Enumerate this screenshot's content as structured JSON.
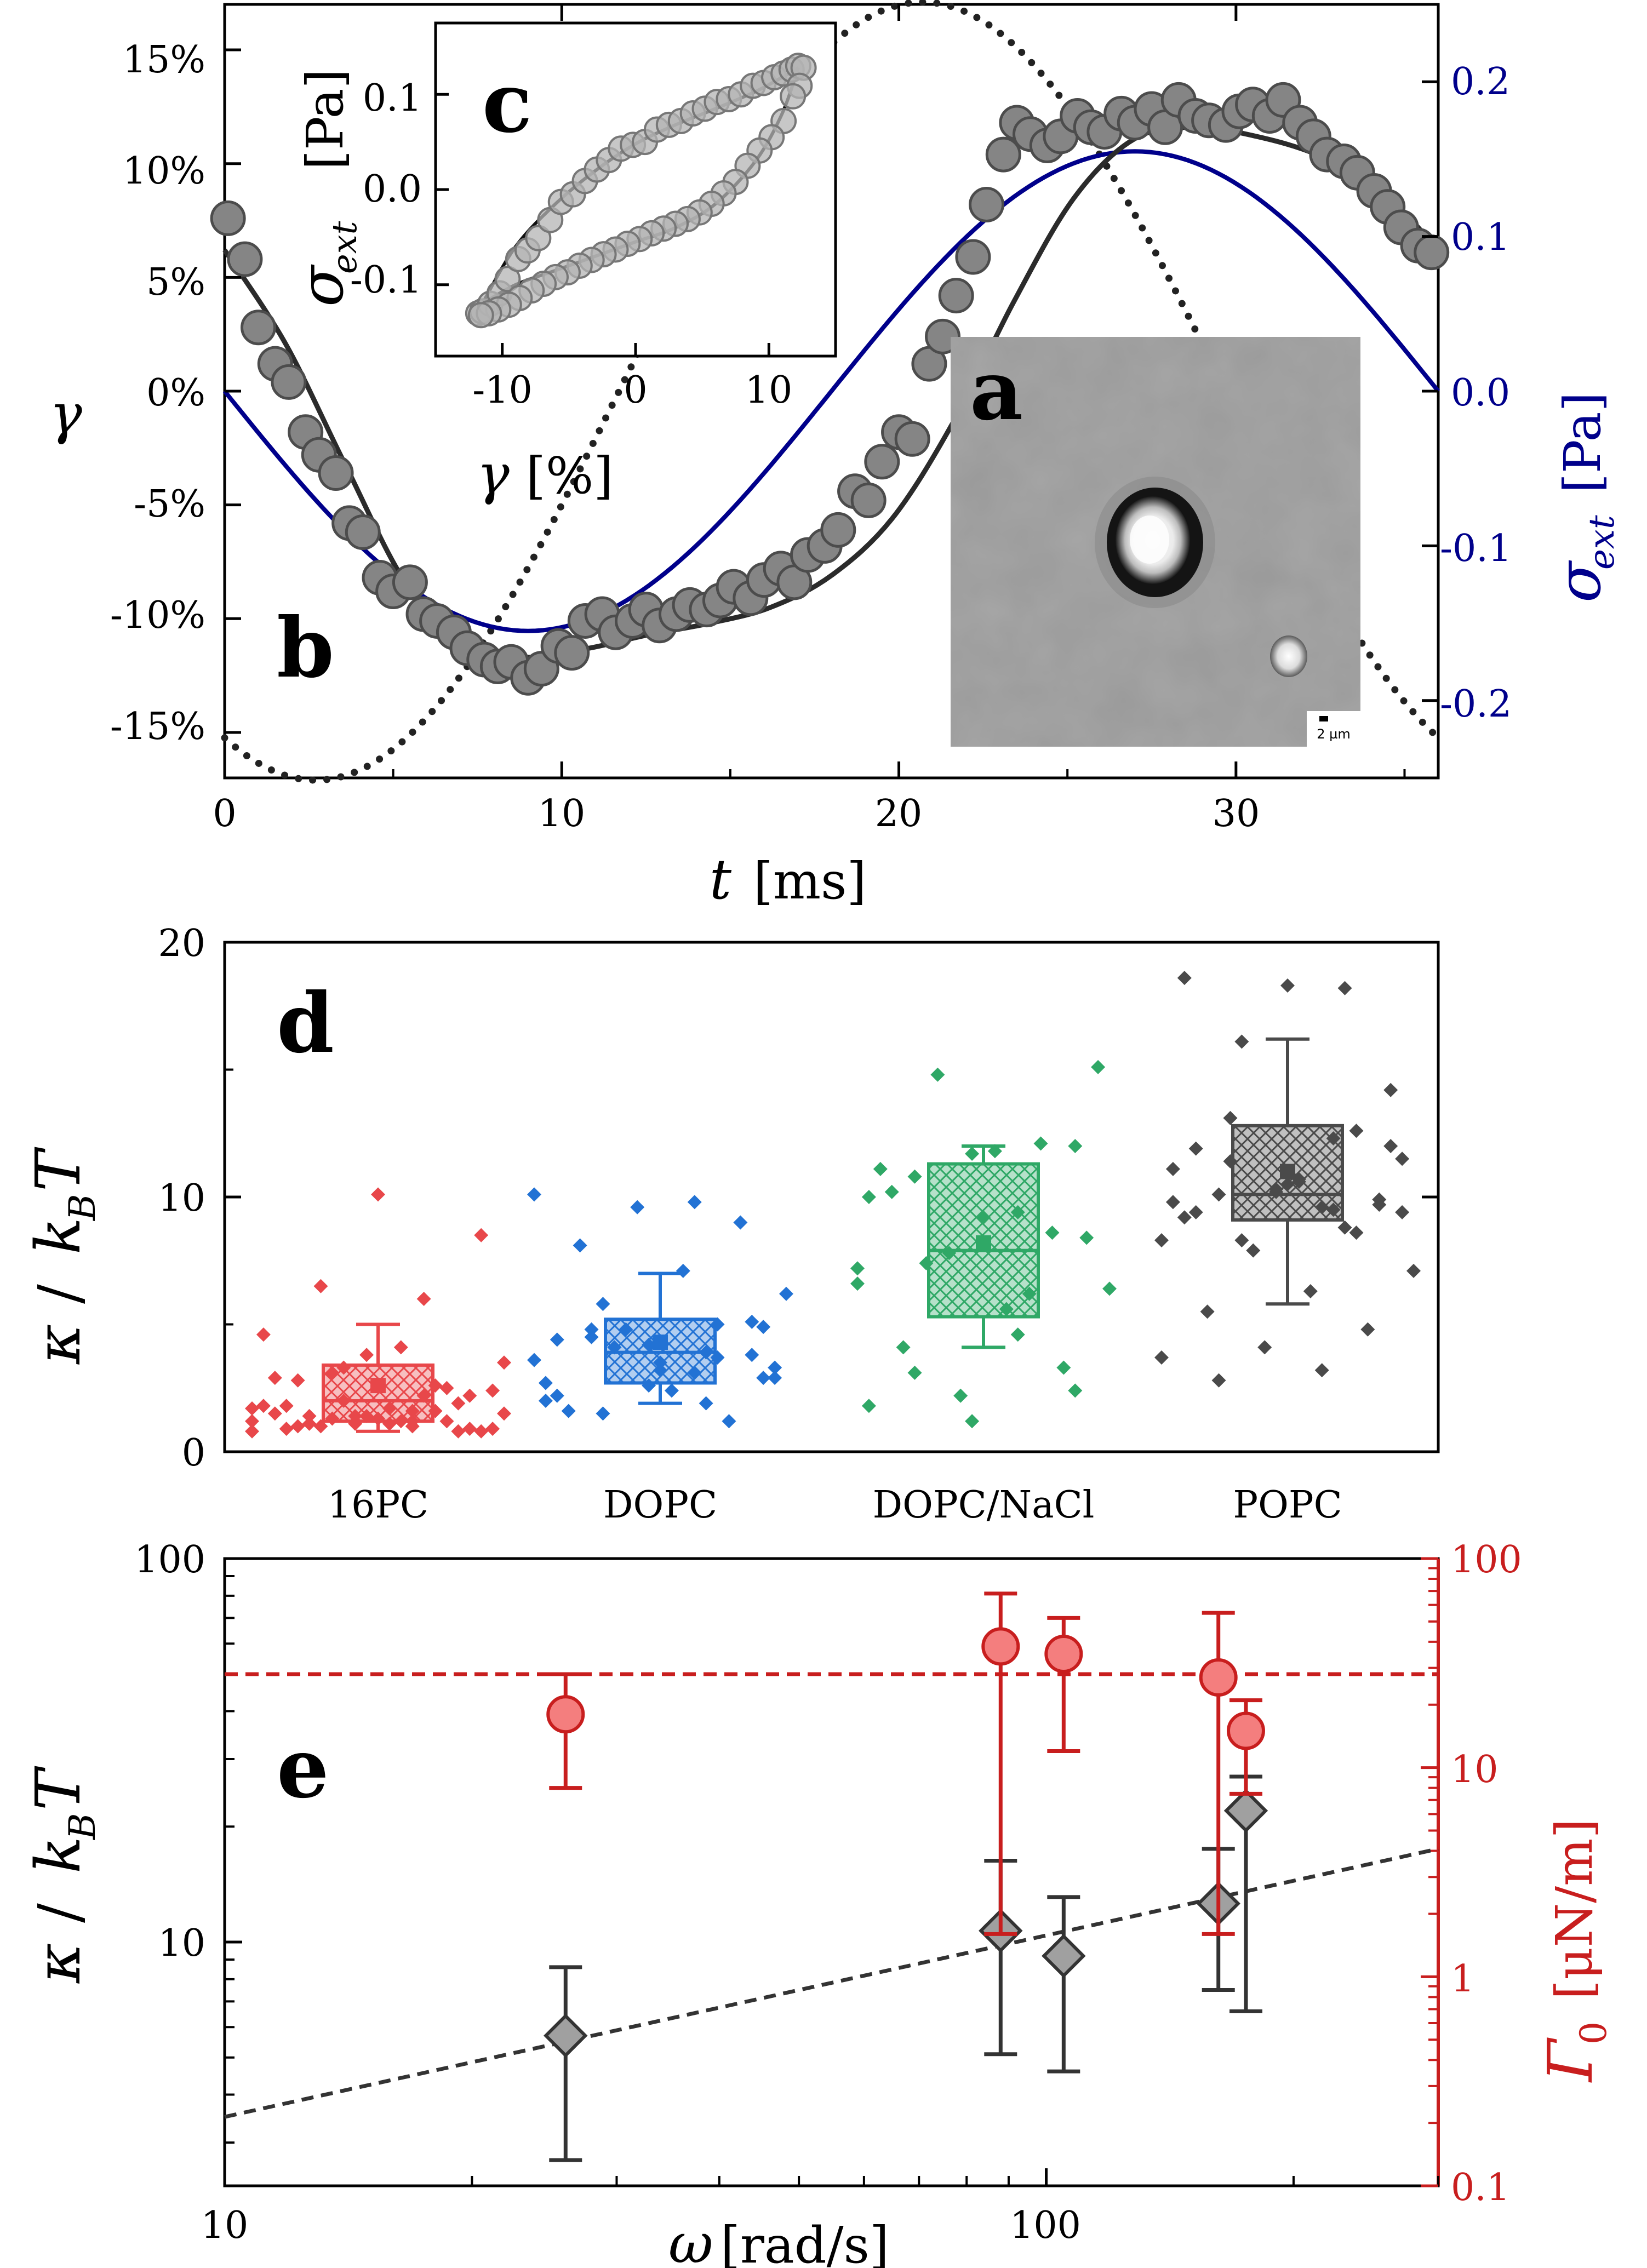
{
  "panels": {
    "a": {
      "letter": "a",
      "scalebar_label": "2 µm"
    },
    "b": {
      "letter": "b",
      "xlabel_symbol": "t",
      "xlabel_unit": "[ms]",
      "ylabel_left": "γ",
      "ylabel_right_symbol": "σ",
      "ylabel_right_sub": "ext",
      "ylabel_right_unit": "[Pa]",
      "xticks": [
        "0",
        "10",
        "20",
        "30"
      ],
      "yticks_left": [
        "15%",
        "10%",
        "5%",
        "0%",
        "-5%",
        "-10%",
        "-15%"
      ],
      "yticks_right": [
        "0.2",
        "0.1",
        "0.0",
        "-0.1",
        "-0.2"
      ]
    },
    "c": {
      "letter": "c",
      "xlabel_symbol": "γ",
      "xlabel_unit": "[%]",
      "ylabel_symbol": "σ",
      "ylabel_sub": "ext",
      "ylabel_unit": "[Pa]",
      "xticks": [
        "-10",
        "0",
        "10"
      ],
      "yticks": [
        "0.1",
        "0.0",
        "-0.1"
      ]
    },
    "d": {
      "letter": "d",
      "ylabel_kappa": "κ",
      "ylabel_sep": "/",
      "ylabel_k": "k",
      "ylabel_sub": "B",
      "ylabel_T": "T",
      "yticks": [
        "0",
        "10",
        "20"
      ]
    },
    "e": {
      "letter": "e",
      "xlabel_symbol": "ω",
      "xlabel_unit": "[rad/s]",
      "ylabel_kappa": "κ",
      "ylabel_sep": "/",
      "ylabel_k": "k",
      "ylabel_sub": "B",
      "ylabel_T": "T",
      "ylabel_right_symbol": "Γ",
      "ylabel_right_sub": "0",
      "ylabel_right_unit": "[μN/m]",
      "xticks": [
        "10",
        "100"
      ],
      "yticks_left": [
        "10",
        "100"
      ],
      "yticks_right": [
        "0.1",
        "1",
        "10",
        "100"
      ]
    }
  },
  "colors": {
    "strain": "#7a7a7a",
    "stress": "#00008b",
    "fit": "#2b2b2b",
    "red": "#e8474a",
    "blue": "#2272d4",
    "green": "#2fa866",
    "gray": "#4a4a4a",
    "e_red": "#c81e1e",
    "e_red_fill": "#f47e7e",
    "e_gray_fill": "#a0a0a0"
  },
  "chart_data": [
    {
      "id": "b",
      "type": "scatter",
      "xlim": [
        0,
        36
      ],
      "ylim_left": [
        -0.17,
        0.17
      ],
      "ylim_right": [
        -0.25,
        0.25
      ],
      "strain_amplitude": 0.115,
      "stress_amplitude": 0.155,
      "period_ms": 36,
      "series": [
        {
          "kind": "measured strain",
          "x": [
            0.1,
            0.6,
            1.0,
            1.5,
            1.9,
            2.4,
            2.8,
            3.3,
            3.7,
            4.1,
            4.6,
            5.0,
            5.5,
            5.9,
            6.3,
            6.8,
            7.2,
            7.7,
            8.1,
            8.5,
            9.0,
            9.4,
            9.9,
            10.3,
            10.7,
            11.2,
            11.6,
            12.1,
            12.5,
            12.9,
            13.4,
            13.8,
            14.3,
            14.7,
            15.1,
            15.6,
            16.0,
            16.5,
            16.9,
            17.3,
            17.8,
            18.2,
            18.7,
            19.1,
            19.5,
            20.0,
            20.4,
            20.9,
            21.3,
            21.7,
            22.2,
            22.6,
            23.1,
            23.5,
            23.9,
            24.4,
            24.8,
            25.3,
            25.7,
            26.1,
            26.6,
            27.0,
            27.5,
            27.9,
            28.3,
            28.8,
            29.2,
            29.7,
            30.1,
            30.5,
            31.0,
            31.4,
            31.9,
            32.3,
            32.7,
            33.2,
            33.6,
            34.1,
            34.5,
            34.9,
            35.4,
            35.8
          ],
          "y": [
            0.076,
            0.058,
            0.028,
            0.012,
            0.004,
            -0.018,
            -0.028,
            -0.036,
            -0.058,
            -0.062,
            -0.082,
            -0.088,
            -0.084,
            -0.098,
            -0.101,
            -0.106,
            -0.113,
            -0.118,
            -0.121,
            -0.119,
            -0.126,
            -0.122,
            -0.112,
            -0.115,
            -0.101,
            -0.098,
            -0.106,
            -0.101,
            -0.096,
            -0.103,
            -0.098,
            -0.094,
            -0.096,
            -0.092,
            -0.086,
            -0.091,
            -0.083,
            -0.078,
            -0.084,
            -0.072,
            -0.068,
            -0.061,
            -0.044,
            -0.048,
            -0.031,
            -0.018,
            -0.021,
            0.012,
            0.024,
            0.042,
            0.059,
            0.082,
            0.104,
            0.118,
            0.113,
            0.108,
            0.112,
            0.121,
            0.116,
            0.114,
            0.122,
            0.118,
            0.124,
            0.116,
            0.128,
            0.121,
            0.119,
            0.117,
            0.123,
            0.126,
            0.121,
            0.128,
            0.118,
            0.112,
            0.104,
            0.101,
            0.096,
            0.088,
            0.081,
            0.072,
            0.064,
            0.061
          ]
        },
        {
          "kind": "strain fit",
          "x": [
            0,
            1.8,
            3.6,
            5.4,
            7.2,
            9,
            10.8,
            12.6,
            14.4,
            16.2,
            18,
            19.8,
            21.6,
            23.4,
            25.2,
            27,
            28.8,
            30.6,
            32.4,
            34.2,
            36
          ],
          "y": [
            0.062,
            0.021,
            -0.033,
            -0.085,
            -0.112,
            -0.117,
            -0.113,
            -0.107,
            -0.102,
            -0.095,
            -0.081,
            -0.056,
            -0.014,
            0.039,
            0.085,
            0.111,
            0.116,
            0.112,
            0.104,
            0.09,
            0.062
          ]
        },
        {
          "kind": "linear strain",
          "x": [
            0,
            1.8,
            3.6,
            5.4,
            7.2,
            9,
            10.8,
            12.6,
            14.4,
            16.2,
            18,
            19.8,
            21.6,
            23.4,
            25.2,
            27,
            28.8,
            30.6,
            32.4,
            34.2,
            36
          ],
          "y": [
            0.075,
            0.022,
            -0.034,
            -0.087,
            -0.13,
            -0.159,
            -0.171,
            -0.164,
            -0.14,
            -0.101,
            -0.052,
            0.003,
            0.058,
            0.107,
            0.145,
            0.167,
            0.171,
            0.156,
            0.123,
            0.077,
            0.022
          ]
        },
        {
          "kind": "external stress",
          "x": [
            0,
            1.8,
            3.6,
            5.4,
            7.2,
            9,
            10.8,
            12.6,
            14.4,
            16.2,
            18,
            19.8,
            21.6,
            23.4,
            25.2,
            27,
            28.8,
            30.6,
            32.4,
            34.2,
            36
          ],
          "y": [
            0.0,
            -0.048,
            -0.091,
            -0.125,
            -0.147,
            -0.155,
            -0.147,
            -0.125,
            -0.091,
            -0.048,
            0.0,
            0.048,
            0.091,
            0.125,
            0.147,
            0.155,
            0.147,
            0.125,
            0.091,
            0.048,
            0.0
          ]
        }
      ]
    },
    {
      "id": "c",
      "type": "scatter",
      "xlim": [
        -15,
        15
      ],
      "ylim": [
        -0.175,
        0.175
      ],
      "series": [
        {
          "kind": "measured loop",
          "x": [
            -11.8,
            -11.5,
            -10.9,
            -10.2,
            -9.6,
            -8.8,
            -8.1,
            -7.3,
            -6.4,
            -5.6,
            -4.7,
            -3.8,
            -2.9,
            -2.0,
            -1.1,
            -0.2,
            0.7,
            1.6,
            2.5,
            3.4,
            4.3,
            5.2,
            6.1,
            7.0,
            7.9,
            8.8,
            9.6,
            10.4,
            11.1,
            11.7,
            12.2,
            12.6,
            12.3,
            11.8,
            11.1,
            10.2,
            9.3,
            8.4,
            7.5,
            6.6,
            5.7,
            4.8,
            3.9,
            3.0,
            2.1,
            1.2,
            0.3,
            -0.6,
            -1.5,
            -2.4,
            -3.3,
            -4.2,
            -5.1,
            -6.0,
            -6.9,
            -7.8,
            -8.7,
            -9.5,
            -10.3,
            -11.0,
            -11.6
          ],
          "y": [
            -0.13,
            -0.128,
            -0.12,
            -0.109,
            -0.094,
            -0.073,
            -0.064,
            -0.051,
            -0.032,
            -0.013,
            -0.005,
            0.009,
            0.021,
            0.031,
            0.043,
            0.047,
            0.05,
            0.063,
            0.068,
            0.072,
            0.08,
            0.085,
            0.092,
            0.095,
            0.1,
            0.109,
            0.112,
            0.118,
            0.122,
            0.126,
            0.13,
            0.128,
            0.109,
            0.098,
            0.072,
            0.055,
            0.041,
            0.025,
            0.008,
            -0.004,
            -0.015,
            -0.024,
            -0.031,
            -0.036,
            -0.041,
            -0.046,
            -0.052,
            -0.057,
            -0.063,
            -0.068,
            -0.074,
            -0.08,
            -0.087,
            -0.092,
            -0.099,
            -0.106,
            -0.114,
            -0.121,
            -0.126,
            -0.13,
            -0.132
          ]
        },
        {
          "kind": "fit upper branch",
          "x": [
            -11.5,
            -9,
            -6,
            -3,
            0,
            3,
            6,
            9,
            11.5,
            12.2
          ],
          "y": [
            -0.12,
            -0.06,
            -0.015,
            0.02,
            0.048,
            0.068,
            0.085,
            0.103,
            0.122,
            0.128
          ]
        },
        {
          "kind": "fit lower branch",
          "x": [
            12.2,
            11,
            9,
            6,
            3,
            0,
            -3,
            -6,
            -9,
            -11.5
          ],
          "y": [
            0.128,
            0.08,
            0.03,
            -0.015,
            -0.04,
            -0.055,
            -0.07,
            -0.085,
            -0.1,
            -0.12
          ]
        }
      ]
    },
    {
      "id": "d",
      "type": "box",
      "categories": [
        "16PC",
        "DOPC",
        "DOPC/NaCl",
        "POPC"
      ],
      "ylim": [
        0,
        20
      ],
      "boxes": [
        {
          "q1": 1.2,
          "median": 2.0,
          "q3": 3.4,
          "mean": 2.6,
          "whisker_low": 0.8,
          "whisker_high": 5.0
        },
        {
          "q1": 2.7,
          "median": 3.9,
          "q3": 5.2,
          "mean": 4.3,
          "whisker_low": 1.9,
          "whisker_high": 7.0
        },
        {
          "q1": 5.3,
          "median": 7.9,
          "q3": 11.3,
          "mean": 8.2,
          "whisker_low": 4.1,
          "whisker_high": 12.0
        },
        {
          "q1": 9.1,
          "median": 10.1,
          "q3": 12.8,
          "mean": 11.0,
          "whisker_low": 5.8,
          "whisker_high": 16.2
        }
      ],
      "points": [
        [
          1.2,
          1.6,
          1.1,
          0.9,
          1.4,
          1.8,
          2.2,
          1.0,
          0.8,
          1.3,
          1.5,
          2.6,
          3.1,
          2.4,
          1.7,
          0.9,
          1.2,
          2.0,
          3.5,
          4.1,
          2.8,
          1.9,
          1.1,
          0.8,
          1.0,
          1.4,
          2.2,
          3.8,
          4.6,
          6.0,
          6.5,
          8.5,
          10.1,
          2.9,
          1.6,
          1.3,
          0.9,
          1.1,
          1.8,
          2.5,
          3.3,
          1.5,
          1.2,
          1.0,
          0.8,
          1.4,
          1.7,
          1.2
        ],
        [
          3.6,
          3.1,
          4.8,
          5.1,
          4.2,
          2.7,
          1.9,
          1.5,
          2.9,
          3.5,
          4.4,
          5.0,
          4.1,
          3.3,
          2.4,
          1.6,
          1.2,
          4.8,
          6.2,
          7.1,
          8.1,
          9.0,
          9.6,
          10.1,
          9.8,
          4.5,
          3.8,
          2.6,
          2.0,
          3.9,
          5.8,
          4.9,
          3.2,
          2.2,
          3.7,
          4.1,
          2.9
        ],
        [
          6.6,
          4.6,
          3.1,
          2.4,
          1.2,
          1.8,
          6.2,
          7.4,
          8.4,
          9.2,
          11.1,
          12.1,
          14.8,
          15.1,
          11.8,
          10.2,
          8.6,
          7.8,
          6.4,
          5.6,
          4.1,
          3.3,
          2.2,
          7.2,
          9.4,
          10.8,
          12.0,
          11.7,
          10.0
        ],
        [
          8.3,
          9.6,
          10.1,
          9.9,
          10.3,
          11.1,
          12.3,
          13.1,
          14.2,
          18.3,
          18.6,
          18.2,
          16.1,
          11.5,
          10.7,
          9.4,
          8.6,
          7.9,
          7.1,
          6.3,
          5.5,
          4.8,
          4.1,
          3.7,
          3.2,
          2.8,
          9.7,
          10.2,
          9.8,
          9.5,
          11.4,
          12.0,
          10.5,
          9.2,
          8.8,
          8.3,
          9.4,
          10.6,
          11.9,
          12.6
        ]
      ]
    },
    {
      "id": "e",
      "type": "scatter",
      "xscale": "log",
      "yscale_left": "log",
      "yscale_right": "log",
      "xlim": [
        10,
        300
      ],
      "ylim_left": [
        2,
        100
      ],
      "ylim_right": [
        0.1,
        100
      ],
      "series": [
        {
          "kind": "bending rigidity",
          "x": [
            26,
            88,
            105,
            162,
            175
          ],
          "y": [
            5.7,
            10.7,
            9.2,
            12.6,
            22.0
          ],
          "err_low": [
            2.7,
            5.1,
            4.6,
            7.5,
            6.6
          ],
          "err_high": [
            8.6,
            16.3,
            13.1,
            17.5,
            27.0
          ]
        },
        {
          "kind": "surface tension",
          "x": [
            26,
            88,
            105,
            162,
            175
          ],
          "y": [
            18,
            38,
            35,
            27,
            15
          ],
          "err_low": [
            8,
            1.6,
            12,
            1.6,
            7.5
          ],
          "err_high": [
            28,
            68,
            52,
            55,
            21
          ]
        },
        {
          "kind": "tension mean",
          "value": 28
        },
        {
          "kind": "rigidity power law",
          "x": [
            10,
            300
          ],
          "y": [
            3.5,
            17.5
          ]
        }
      ]
    }
  ]
}
